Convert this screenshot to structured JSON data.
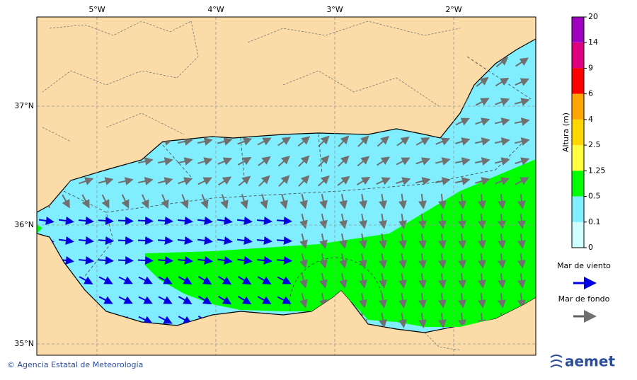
{
  "map": {
    "lon_ticks": [
      "5°W",
      "4°W",
      "3°W",
      "2°W"
    ],
    "lat_ticks": [
      "37°N",
      "36°N",
      "35°N"
    ],
    "colorbar": {
      "title": "Altura (m)",
      "levels": [
        20,
        14,
        9,
        6,
        4,
        2.5,
        1.25,
        0.5,
        0.1,
        0
      ],
      "colors": [
        "#a000c0",
        "#e0007f",
        "#ff0000",
        "#ffa500",
        "#ffd700",
        "#ffff40",
        "#00ff00",
        "#80eefe",
        "#d0ffff"
      ]
    },
    "legend": [
      {
        "label": "Mar de viento",
        "color": "#0000e0"
      },
      {
        "label": "Mar de fondo",
        "color": "#606060"
      }
    ],
    "footer": {
      "credit": "© Agencia Estatal de Meteorología",
      "logo": "aemet"
    }
  }
}
